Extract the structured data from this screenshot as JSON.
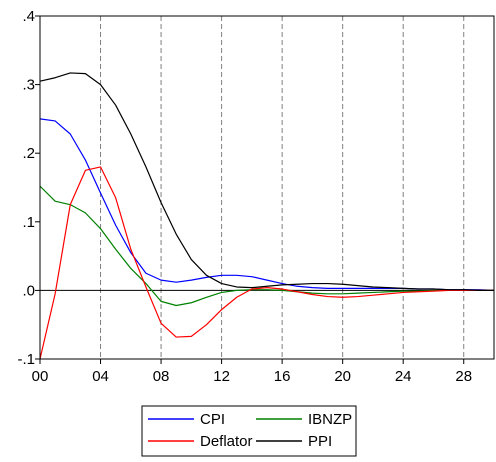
{
  "chart_data": {
    "type": "line",
    "x": [
      0,
      1,
      2,
      3,
      4,
      5,
      6,
      7,
      8,
      9,
      10,
      11,
      12,
      13,
      14,
      15,
      16,
      17,
      18,
      19,
      20,
      21,
      22,
      23,
      24,
      25,
      26,
      27,
      28,
      29,
      30
    ],
    "x_tick_labels": [
      "00",
      "04",
      "08",
      "12",
      "16",
      "20",
      "24",
      "28"
    ],
    "x_tick_values": [
      0,
      4,
      8,
      12,
      16,
      20,
      24,
      28
    ],
    "y_tick_labels": [
      ".4",
      ".3",
      ".2",
      ".1",
      ".0",
      "-.1"
    ],
    "y_tick_values": [
      0.4,
      0.3,
      0.2,
      0.1,
      0.0,
      -0.1
    ],
    "xlim": [
      0,
      30
    ],
    "ylim": [
      -0.1,
      0.4
    ],
    "vertical_gridlines": "dashed at each x tick",
    "zero_line": true,
    "legend_position": "bottom",
    "series": [
      {
        "name": "CPI",
        "color": "#0000ff",
        "values": [
          0.25,
          0.247,
          0.228,
          0.19,
          0.142,
          0.095,
          0.055,
          0.025,
          0.015,
          0.012,
          0.015,
          0.019,
          0.022,
          0.022,
          0.02,
          0.015,
          0.01,
          0.006,
          0.004,
          0.003,
          0.003,
          0.003,
          0.003,
          0.003,
          0.003,
          0.002,
          0.002,
          0.001,
          0.001,
          0.001,
          0.0
        ]
      },
      {
        "name": "IBNZP",
        "color": "#008000",
        "values": [
          0.152,
          0.13,
          0.125,
          0.113,
          0.09,
          0.06,
          0.032,
          0.01,
          -0.016,
          -0.022,
          -0.018,
          -0.01,
          -0.003,
          0.0,
          0.001,
          0.001,
          0.0,
          -0.002,
          -0.004,
          -0.005,
          -0.005,
          -0.004,
          -0.003,
          -0.002,
          -0.001,
          -0.001,
          0.0,
          0.0,
          0.0,
          0.0,
          0.0
        ]
      },
      {
        "name": "Deflator",
        "color": "#ff0000",
        "values": [
          -0.1,
          -0.005,
          0.125,
          0.175,
          0.18,
          0.135,
          0.06,
          0.005,
          -0.048,
          -0.068,
          -0.067,
          -0.05,
          -0.028,
          -0.01,
          0.002,
          0.004,
          0.002,
          -0.002,
          -0.006,
          -0.009,
          -0.01,
          -0.009,
          -0.007,
          -0.005,
          -0.003,
          -0.002,
          -0.001,
          0.0,
          0.0,
          0.0,
          0.0
        ]
      },
      {
        "name": "PPI",
        "color": "#000000",
        "values": [
          0.305,
          0.31,
          0.317,
          0.316,
          0.3,
          0.27,
          0.228,
          0.18,
          0.128,
          0.082,
          0.045,
          0.022,
          0.01,
          0.005,
          0.004,
          0.006,
          0.008,
          0.009,
          0.01,
          0.01,
          0.009,
          0.007,
          0.005,
          0.004,
          0.003,
          0.002,
          0.002,
          0.001,
          0.001,
          0.0,
          0.0
        ]
      }
    ],
    "legend_layout": [
      [
        "CPI",
        "IBNZP"
      ],
      [
        "Deflator",
        "PPI"
      ]
    ]
  }
}
